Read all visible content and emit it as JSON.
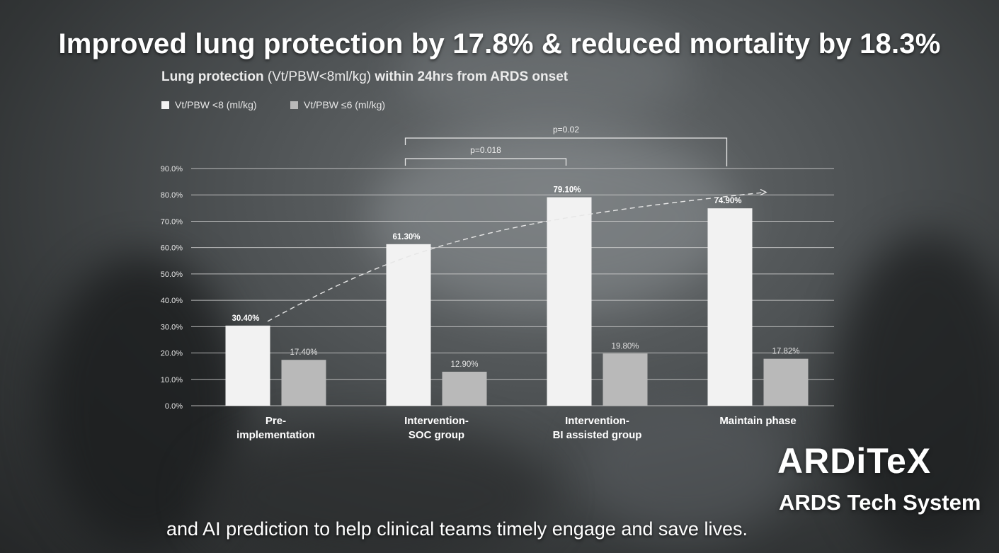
{
  "headline": "Improved lung protection by 17.8% & reduced mortality by 18.3%",
  "chart_title": {
    "part1": "Lung protection",
    "part2": " (Vt/PBW<8ml/kg) ",
    "part3": "within 24hrs from ARDS onset"
  },
  "brand": {
    "name": "ARDiTeX",
    "tagline": "ARDS Tech System"
  },
  "caption": "and AI prediction to help clinical teams timely engage and save lives.",
  "colors": {
    "series_primary": "#f2f2f2",
    "series_secondary": "#b9b9b9",
    "gridline": "#cfcfcf"
  },
  "chart_data": {
    "type": "bar",
    "categories": [
      [
        "Pre-",
        "implementation"
      ],
      [
        "Intervention-",
        "SOC group"
      ],
      [
        "Intervention-",
        "BI assisted group"
      ],
      [
        "Maintain phase"
      ]
    ],
    "series": [
      {
        "name": "Vt/PBW <8 (ml/kg)",
        "values": [
          30.4,
          61.3,
          79.1,
          74.9
        ],
        "labels": [
          "30.40%",
          "61.30%",
          "79.10%",
          "74.90%"
        ]
      },
      {
        "name": "Vt/PBW ≤6 (ml/kg)",
        "values": [
          17.4,
          12.9,
          19.8,
          17.82
        ],
        "labels": [
          "17.40%",
          "12.90%",
          "19.80%",
          "17.82%"
        ]
      }
    ],
    "y_ticks": [
      "0.0%",
      "10.0%",
      "20.0%",
      "30.0%",
      "40.0%",
      "50.0%",
      "60.0%",
      "70.0%",
      "80.0%",
      "90.0%"
    ],
    "ylim": [
      0,
      90
    ],
    "grid": true,
    "legend_position": "top-left",
    "trend_arrow": "dashed curve from the first to the last category, above the primary series",
    "significance": [
      {
        "label": "p=0.018",
        "from_category": 1,
        "to_category": 2
      },
      {
        "label": "p=0.02",
        "from_category": 1,
        "to_category": 3
      }
    ]
  }
}
